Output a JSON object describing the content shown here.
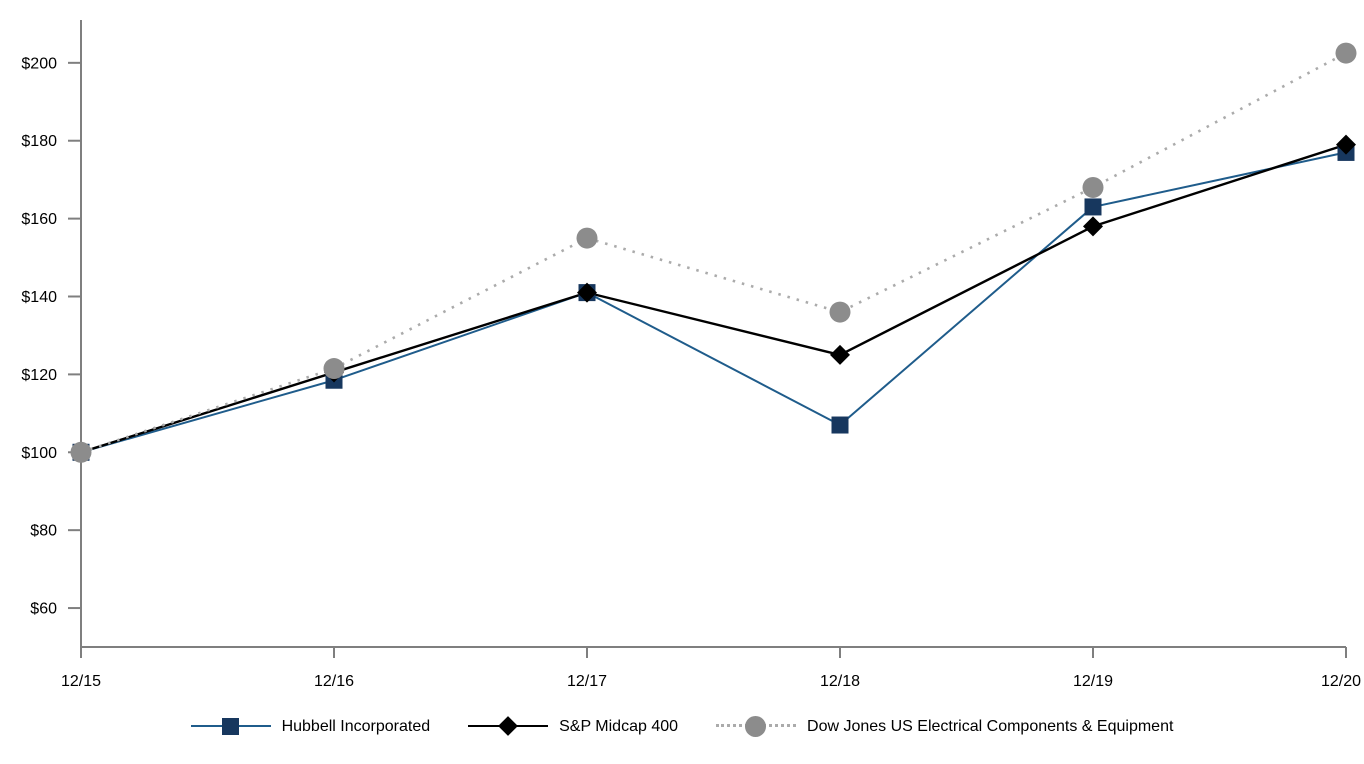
{
  "chart_data": {
    "type": "line",
    "title": "",
    "xlabel": "",
    "ylabel": "",
    "categories": [
      "12/15",
      "12/16",
      "12/17",
      "12/18",
      "12/19",
      "12/20"
    ],
    "series": [
      {
        "name": "Hubbell Incorporated",
        "values": [
          100,
          118.5,
          141,
          107,
          163,
          177
        ],
        "line_color": "#1F5C8B",
        "line_style": "solid",
        "line_width": 2,
        "marker": "square",
        "marker_color": "#17375E"
      },
      {
        "name": "S&P Midcap 400",
        "values": [
          100,
          120.5,
          141,
          125,
          158,
          179
        ],
        "line_color": "#000000",
        "line_style": "solid",
        "line_width": 2.4,
        "marker": "diamond",
        "marker_color": "#000000"
      },
      {
        "name": "Dow Jones US Electrical Components & Equipment",
        "values": [
          100,
          121.5,
          155,
          136,
          168,
          202.5
        ],
        "line_color": "#ABABAB",
        "line_style": "dotted",
        "line_width": 2.6,
        "marker": "circle",
        "marker_color": "#8C8C8C"
      }
    ],
    "y_ticks": [
      60,
      80,
      100,
      120,
      140,
      160,
      180,
      200
    ],
    "y_tick_labels": [
      "$60",
      "$80",
      "$100",
      "$120",
      "$140",
      "$160",
      "$180",
      "$200"
    ],
    "ylim": [
      50,
      211
    ],
    "grid": false,
    "legend_position": "bottom",
    "axis_color": "#7F7F7F",
    "text_color": "#000000",
    "background_color": "#FFFFFF"
  }
}
